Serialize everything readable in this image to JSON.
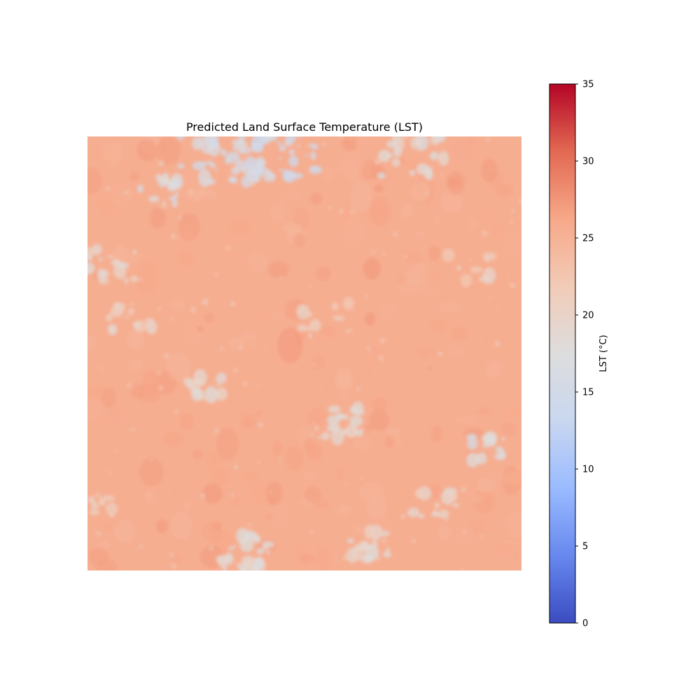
{
  "chart_data": {
    "type": "heatmap",
    "title": "Predicted Land Surface Temperature (LST)",
    "axes_visible": false,
    "colormap": "coolwarm",
    "colorbar": {
      "label": "LST (°C)",
      "vmin": 0,
      "vmax": 35,
      "ticks": [
        0,
        5,
        10,
        15,
        20,
        25,
        30,
        35
      ],
      "placement": "right"
    },
    "field": {
      "dominant_value": 25.5,
      "value_range": [
        14,
        29
      ],
      "description_of_pattern": []
    },
    "colors": {
      "stops": [
        "#3b4cc0",
        "#6788ee",
        "#9abbff",
        "#c9d7f0",
        "#dddddd",
        "#f2cbb7",
        "#f7a889",
        "#e26952",
        "#b40426"
      ]
    }
  }
}
